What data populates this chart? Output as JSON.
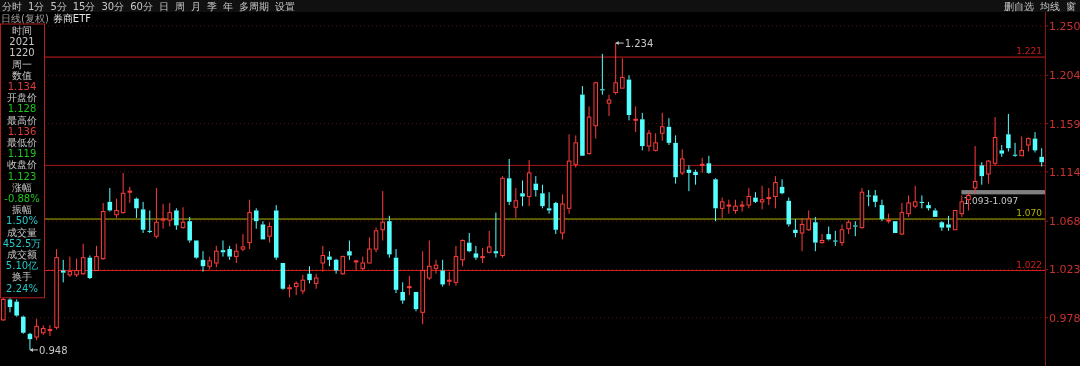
{
  "chart_data": [
    {
      "type": "other",
      "annotations": [
        "分时",
        "1分",
        "5分",
        "15分",
        "30分",
        "60分",
        "日",
        "周",
        "月",
        "季",
        "年",
        "多周期",
        "设置"
      ]
    },
    {
      "type": "other",
      "annotations": [
        "删自选",
        "均线",
        "窗"
      ]
    },
    {
      "type": "other",
      "annotations": [
        "时间",
        "2021",
        "1220",
        "周一",
        "数值",
        "1.134",
        "开盘价",
        "1.128",
        "最高价",
        "1.136",
        "最低价",
        "1.119",
        "收盘价",
        "1.123",
        "涨幅",
        "-0.88%",
        "振幅",
        "1.50%",
        "成交量",
        "452.5万",
        "成交额",
        "5.10亿",
        "换手",
        "2.24%"
      ],
      "colors": [
        "#c8c8c8",
        "#c8c8c8",
        "#c8c8c8",
        "#c8c8c8",
        "#c8c8c8",
        "#e03c3c",
        "#c8c8c8",
        "#1ec81e",
        "#c8c8c8",
        "#e03c3c",
        "#c8c8c8",
        "#1ec81e",
        "#c8c8c8",
        "#1ec81e",
        "#c8c8c8",
        "#1ec81e",
        "#c8c8c8",
        "#28c8c8",
        "#c8c8c8",
        "#28c8c8",
        "#c8c8c8",
        "#28c8c8",
        "#c8c8c8",
        "#28c8c8"
      ]
    },
    {
      "type": "candlestick",
      "title": "券商ETF",
      "subtitle": "日线(复权)",
      "categories": [
        null,
        null,
        null,
        null,
        null,
        null,
        null,
        null,
        null,
        null,
        null,
        null,
        null,
        null,
        null,
        null,
        null,
        null,
        null,
        null,
        null,
        null,
        null,
        null,
        null,
        null,
        null,
        null,
        null,
        null,
        null,
        null,
        null,
        null,
        null,
        null,
        null,
        null,
        null,
        null,
        null,
        null,
        null,
        null,
        null,
        null,
        null,
        null,
        null,
        null,
        null,
        null,
        null,
        null,
        null,
        null,
        null,
        null,
        null,
        null,
        null,
        null,
        null,
        null,
        null,
        null,
        null,
        null,
        null,
        null,
        null,
        null,
        null,
        null,
        null,
        null,
        null,
        null,
        null,
        null,
        null,
        null,
        null,
        null,
        null,
        null,
        null,
        null,
        null,
        null,
        null,
        null,
        null,
        null,
        null,
        null,
        null,
        null,
        null,
        null,
        null,
        null,
        null,
        null,
        null,
        null,
        null,
        null,
        null,
        null,
        null,
        null,
        null,
        null,
        null,
        null,
        null,
        null,
        null,
        null,
        null,
        null,
        null,
        null,
        null,
        null,
        null,
        null,
        null,
        null,
        null,
        null,
        null,
        null,
        null,
        null,
        null,
        null,
        null,
        null,
        null,
        null,
        null,
        null,
        null,
        null,
        null,
        null,
        null,
        null,
        null,
        null,
        null,
        null,
        null,
        null,
        null
      ],
      "ohlc": [
        [
          0.976,
          0.997,
          0.975,
          0.995
        ],
        [
          0.995,
          0.997,
          0.983,
          0.988
        ],
        [
          0.993,
          0.995,
          0.979,
          0.98
        ],
        [
          0.979,
          0.98,
          0.963,
          0.964
        ],
        [
          0.963,
          0.964,
          0.948,
          0.958
        ],
        [
          0.96,
          0.977,
          0.957,
          0.97
        ],
        [
          0.964,
          0.971,
          0.962,
          0.968
        ],
        [
          0.966,
          0.971,
          0.961,
          0.967
        ],
        [
          0.969,
          1.042,
          0.967,
          1.034
        ],
        [
          1.022,
          1.032,
          1.011,
          1.02
        ],
        [
          1.018,
          1.035,
          1.016,
          1.021
        ],
        [
          1.018,
          1.033,
          1.016,
          1.022
        ],
        [
          1.019,
          1.047,
          1.018,
          1.034
        ],
        [
          1.034,
          1.036,
          1.014,
          1.015
        ],
        [
          1.022,
          1.045,
          1.022,
          1.035
        ],
        [
          1.033,
          1.085,
          1.032,
          1.077
        ],
        [
          1.086,
          1.099,
          1.077,
          1.078
        ],
        [
          1.074,
          1.089,
          1.071,
          1.078
        ],
        [
          1.076,
          1.113,
          1.075,
          1.094
        ],
        [
          1.095,
          1.1,
          1.085,
          1.096
        ],
        [
          1.089,
          1.09,
          1.071,
          1.08
        ],
        [
          1.079,
          1.086,
          1.057,
          1.06
        ],
        [
          1.059,
          1.078,
          1.057,
          1.058
        ],
        [
          1.054,
          1.099,
          1.052,
          1.067
        ],
        [
          1.069,
          1.084,
          1.061,
          1.07
        ],
        [
          1.069,
          1.085,
          1.063,
          1.076
        ],
        [
          1.078,
          1.08,
          1.06,
          1.064
        ],
        [
          1.062,
          1.081,
          1.061,
          1.067
        ],
        [
          1.068,
          1.072,
          1.048,
          1.05
        ],
        [
          1.05,
          1.05,
          1.033,
          1.034
        ],
        [
          1.032,
          1.04,
          1.021,
          1.026
        ],
        [
          1.026,
          1.035,
          1.023,
          1.031
        ],
        [
          1.029,
          1.045,
          1.025,
          1.04
        ],
        [
          1.041,
          1.05,
          1.035,
          1.039
        ],
        [
          1.042,
          1.045,
          1.032,
          1.035
        ],
        [
          1.035,
          1.047,
          1.029,
          1.04
        ],
        [
          1.042,
          1.056,
          1.04,
          1.044
        ],
        [
          1.048,
          1.088,
          1.042,
          1.076
        ],
        [
          1.078,
          1.08,
          1.061,
          1.068
        ],
        [
          1.065,
          1.068,
          1.051,
          1.051
        ],
        [
          1.054,
          1.067,
          1.048,
          1.063
        ],
        [
          1.078,
          1.083,
          1.032,
          1.034
        ],
        [
          1.029,
          1.029,
          1.004,
          1.005
        ],
        [
          1.005,
          1.009,
          0.997,
          1.006
        ],
        [
          1.007,
          1.012,
          0.999,
          1.01
        ],
        [
          1.003,
          1.018,
          1.0,
          1.013
        ],
        [
          1.019,
          1.026,
          1.01,
          1.013
        ],
        [
          1.01,
          1.019,
          1.005,
          1.015
        ],
        [
          1.029,
          1.045,
          1.021,
          1.036
        ],
        [
          1.035,
          1.04,
          1.026,
          1.032
        ],
        [
          1.032,
          1.033,
          1.019,
          1.022
        ],
        [
          1.019,
          1.036,
          1.018,
          1.035
        ],
        [
          1.04,
          1.05,
          1.032,
          1.036
        ],
        [
          1.03,
          1.032,
          1.022,
          1.031
        ],
        [
          1.024,
          1.035,
          1.022,
          1.029
        ],
        [
          1.029,
          1.053,
          1.029,
          1.042
        ],
        [
          1.042,
          1.062,
          1.039,
          1.059
        ],
        [
          1.06,
          1.096,
          1.05,
          1.067
        ],
        [
          1.068,
          1.073,
          1.034,
          1.037
        ],
        [
          1.034,
          1.042,
          1.001,
          1.004
        ],
        [
          1.002,
          1.011,
          0.991,
          0.994
        ],
        [
          1.007,
          1.017,
          0.999,
          1.007
        ],
        [
          1.002,
          1.002,
          0.984,
          0.986
        ],
        [
          0.983,
          1.04,
          0.972,
          1.022
        ],
        [
          1.015,
          1.05,
          1.013,
          1.026
        ],
        [
          1.024,
          1.032,
          1.019,
          1.027
        ],
        [
          1.022,
          1.032,
          1.007,
          1.009
        ],
        [
          1.012,
          1.021,
          1.008,
          1.013
        ],
        [
          1.011,
          1.045,
          1.008,
          1.035
        ],
        [
          1.032,
          1.051,
          1.026,
          1.05
        ],
        [
          1.048,
          1.057,
          1.039,
          1.04
        ],
        [
          1.038,
          1.045,
          1.032,
          1.034
        ],
        [
          1.034,
          1.043,
          1.029,
          1.035
        ],
        [
          1.039,
          1.059,
          1.038,
          1.044
        ],
        [
          1.04,
          1.076,
          1.034,
          1.038
        ],
        [
          1.036,
          1.11,
          1.034,
          1.108
        ],
        [
          1.108,
          1.126,
          1.083,
          1.086
        ],
        [
          1.081,
          1.099,
          1.071,
          1.087
        ],
        [
          1.094,
          1.106,
          1.082,
          1.091
        ],
        [
          1.091,
          1.125,
          1.082,
          1.113
        ],
        [
          1.103,
          1.11,
          1.091,
          1.097
        ],
        [
          1.094,
          1.102,
          1.08,
          1.082
        ],
        [
          1.08,
          1.095,
          1.075,
          1.078
        ],
        [
          1.085,
          1.086,
          1.056,
          1.06
        ],
        [
          1.057,
          1.093,
          1.051,
          1.084
        ],
        [
          1.08,
          1.149,
          1.075,
          1.124
        ],
        [
          1.121,
          1.148,
          1.118,
          1.141
        ],
        [
          1.186,
          1.194,
          1.129,
          1.129
        ],
        [
          1.131,
          1.175,
          1.13,
          1.165
        ],
        [
          1.157,
          1.198,
          1.145,
          1.197
        ],
        [
          1.191,
          1.224,
          1.186,
          1.19
        ],
        [
          1.178,
          1.186,
          1.166,
          1.181
        ],
        [
          1.188,
          1.234,
          1.186,
          1.197
        ],
        [
          1.192,
          1.22,
          1.192,
          1.202
        ],
        [
          1.2,
          1.204,
          1.162,
          1.167
        ],
        [
          1.163,
          1.175,
          1.151,
          1.163
        ],
        [
          1.163,
          1.169,
          1.134,
          1.138
        ],
        [
          1.138,
          1.153,
          1.133,
          1.15
        ],
        [
          1.134,
          1.15,
          1.133,
          1.141
        ],
        [
          1.15,
          1.169,
          1.143,
          1.156
        ],
        [
          1.156,
          1.164,
          1.139,
          1.141
        ],
        [
          1.141,
          1.148,
          1.103,
          1.109
        ],
        [
          1.113,
          1.135,
          1.111,
          1.126
        ],
        [
          1.116,
          1.12,
          1.096,
          1.113
        ],
        [
          1.114,
          1.116,
          1.102,
          1.111
        ],
        [
          1.121,
          1.127,
          1.113,
          1.121
        ],
        [
          1.122,
          1.129,
          1.112,
          1.113
        ],
        [
          1.107,
          1.108,
          1.068,
          1.08
        ],
        [
          1.08,
          1.09,
          1.071,
          1.086
        ],
        [
          1.083,
          1.088,
          1.075,
          1.083
        ],
        [
          1.078,
          1.088,
          1.075,
          1.082
        ],
        [
          1.082,
          1.087,
          1.077,
          1.083
        ],
        [
          1.083,
          1.099,
          1.08,
          1.091
        ],
        [
          1.09,
          1.095,
          1.085,
          1.086
        ],
        [
          1.086,
          1.101,
          1.079,
          1.088
        ],
        [
          1.09,
          1.099,
          1.083,
          1.09
        ],
        [
          1.091,
          1.11,
          1.08,
          1.104
        ],
        [
          1.1,
          1.107,
          1.093,
          1.094
        ],
        [
          1.087,
          1.09,
          1.063,
          1.065
        ],
        [
          1.06,
          1.07,
          1.053,
          1.057
        ],
        [
          1.057,
          1.071,
          1.04,
          1.065
        ],
        [
          1.06,
          1.078,
          1.059,
          1.07
        ],
        [
          1.067,
          1.072,
          1.04,
          1.048
        ],
        [
          1.048,
          1.056,
          1.047,
          1.05
        ],
        [
          1.056,
          1.063,
          1.05,
          1.051
        ],
        [
          1.05,
          1.059,
          1.045,
          1.049
        ],
        [
          1.048,
          1.065,
          1.045,
          1.06
        ],
        [
          1.061,
          1.069,
          1.056,
          1.067
        ],
        [
          1.064,
          1.068,
          1.054,
          1.063
        ],
        [
          1.062,
          1.099,
          1.061,
          1.095
        ],
        [
          1.092,
          1.097,
          1.082,
          1.091
        ],
        [
          1.092,
          1.097,
          1.081,
          1.086
        ],
        [
          1.083,
          1.088,
          1.068,
          1.07
        ],
        [
          1.069,
          1.075,
          1.066,
          1.069
        ],
        [
          1.068,
          1.068,
          1.057,
          1.057
        ],
        [
          1.056,
          1.085,
          1.055,
          1.076
        ],
        [
          1.075,
          1.092,
          1.072,
          1.085
        ],
        [
          1.082,
          1.101,
          1.08,
          1.086
        ],
        [
          1.086,
          1.092,
          1.08,
          1.085
        ],
        [
          1.083,
          1.086,
          1.078,
          1.08
        ],
        [
          1.078,
          1.08,
          1.072,
          1.072
        ],
        [
          1.067,
          1.068,
          1.059,
          1.062
        ],
        [
          1.065,
          1.073,
          1.059,
          1.062
        ],
        [
          1.06,
          1.078,
          1.06,
          1.078
        ],
        [
          1.075,
          1.092,
          1.072,
          1.086
        ],
        [
          1.088,
          1.094,
          1.078,
          1.092
        ],
        [
          1.099,
          1.138,
          1.094,
          1.105
        ],
        [
          1.12,
          1.123,
          1.102,
          1.11
        ],
        [
          1.112,
          1.125,
          1.103,
          1.124
        ],
        [
          1.122,
          1.165,
          1.12,
          1.146
        ],
        [
          1.134,
          1.139,
          1.128,
          1.131
        ],
        [
          1.149,
          1.168,
          1.133,
          1.136
        ],
        [
          1.13,
          1.141,
          1.128,
          1.129
        ],
        [
          1.129,
          1.147,
          1.129,
          1.134
        ],
        [
          1.139,
          1.146,
          1.133,
          1.145
        ],
        [
          1.145,
          1.151,
          1.132,
          1.134
        ],
        [
          1.128,
          1.136,
          1.119,
          1.123
        ]
      ],
      "ylim": [
        0.933,
        1.263
      ],
      "yticks": [
        {
          "value": 1.25,
          "label": "1.250"
        },
        1.204,
        1.159,
        1.114,
        1.068,
        1.023,
        0.978
      ],
      "grid": "y",
      "ref_lines": [
        {
          "axis": "y",
          "value": 1.221,
          "label": "1.221",
          "color": "#c81e1e"
        },
        {
          "axis": "y",
          "value": 1.12,
          "color": "#a01818"
        },
        {
          "axis": "y",
          "value": 1.07,
          "label": "1.070",
          "color": "#b4b400"
        },
        {
          "axis": "y",
          "value": 1.022,
          "label": "1.022",
          "color": "#d21e1e"
        }
      ],
      "bands": [
        {
          "axis": "y",
          "from": 1.093,
          "to": 1.097,
          "label": "1.093-1.097",
          "color": "#808080"
        }
      ],
      "annotations": [
        "1.234",
        "0.948"
      ]
    }
  ]
}
